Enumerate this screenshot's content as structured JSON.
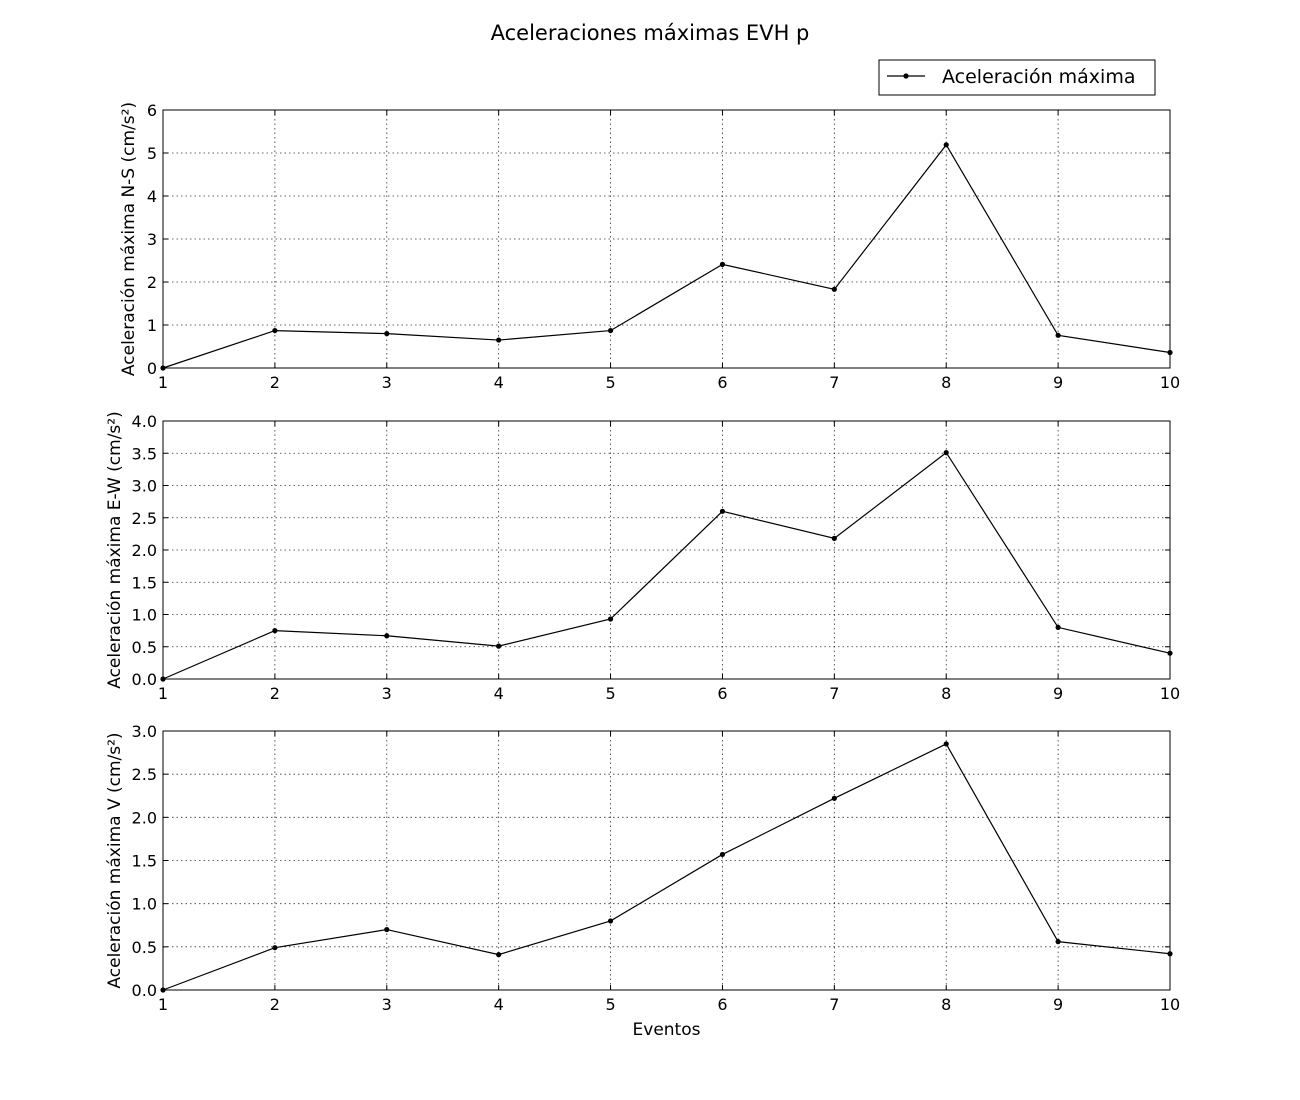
{
  "figure": {
    "title": "Aceleraciones máximas EVH p",
    "legend_label": "Aceleración máxima"
  },
  "chart_data": [
    {
      "type": "line",
      "title": "",
      "xlabel": "",
      "ylabel": "Aceleración máxima N-S (cm/s²)",
      "x": [
        1,
        2,
        3,
        4,
        5,
        6,
        7,
        8,
        9,
        10
      ],
      "xlim": [
        1,
        10
      ],
      "ylim": [
        0,
        6
      ],
      "yticks": [
        "0",
        "1",
        "2",
        "3",
        "4",
        "5",
        "6"
      ],
      "xticks": [
        "1",
        "2",
        "3",
        "4",
        "5",
        "6",
        "7",
        "8",
        "9",
        "10"
      ],
      "grid": true,
      "series": [
        {
          "name": "Aceleración máxima",
          "color": "#000000",
          "values": [
            0.0,
            0.87,
            0.8,
            0.65,
            0.87,
            2.41,
            1.83,
            5.19,
            0.76,
            0.36
          ]
        }
      ]
    },
    {
      "type": "line",
      "title": "",
      "xlabel": "",
      "ylabel": "Aceleración máxima E-W (cm/s²)",
      "x": [
        1,
        2,
        3,
        4,
        5,
        6,
        7,
        8,
        9,
        10
      ],
      "xlim": [
        1,
        10
      ],
      "ylim": [
        0,
        4
      ],
      "yticks": [
        "0.0",
        "0.5",
        "1.0",
        "1.5",
        "2.0",
        "2.5",
        "3.0",
        "3.5",
        "4.0"
      ],
      "xticks": [
        "1",
        "2",
        "3",
        "4",
        "5",
        "6",
        "7",
        "8",
        "9",
        "10"
      ],
      "grid": true,
      "series": [
        {
          "name": "Aceleración máxima",
          "color": "#000000",
          "values": [
            0.0,
            0.75,
            0.67,
            0.51,
            0.93,
            2.6,
            2.18,
            3.51,
            0.8,
            0.4
          ]
        }
      ]
    },
    {
      "type": "line",
      "title": "",
      "xlabel": "Eventos",
      "ylabel": "Aceleración máxima V (cm/s²)",
      "x": [
        1,
        2,
        3,
        4,
        5,
        6,
        7,
        8,
        9,
        10
      ],
      "xlim": [
        1,
        10
      ],
      "ylim": [
        0,
        3
      ],
      "yticks": [
        "0.0",
        "0.5",
        "1.0",
        "1.5",
        "2.0",
        "2.5",
        "3.0"
      ],
      "xticks": [
        "1",
        "2",
        "3",
        "4",
        "5",
        "6",
        "7",
        "8",
        "9",
        "10"
      ],
      "grid": true,
      "series": [
        {
          "name": "Aceleración máxima",
          "color": "#000000",
          "values": [
            0.0,
            0.49,
            0.7,
            0.41,
            0.8,
            1.57,
            2.22,
            2.85,
            0.56,
            0.42
          ]
        }
      ]
    }
  ]
}
